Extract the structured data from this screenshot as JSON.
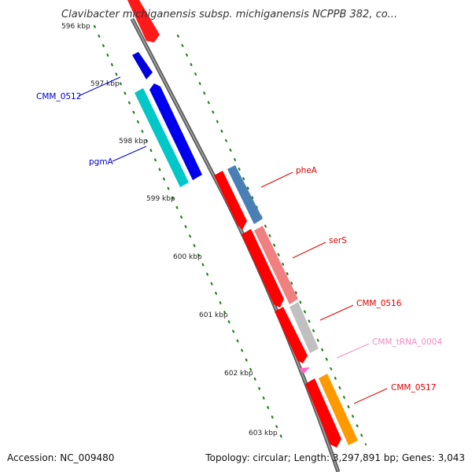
{
  "title": "Clavibacter michiganensis subsp. michiganensis NCPPB 382, co...",
  "footer": {
    "accession": "Accession: NC_009480",
    "summary": "Topology: circular; Length: 3,297,891 bp; Genes: 3,043"
  },
  "ticks": [
    {
      "label": "596 kbp"
    },
    {
      "label": "597 kbp"
    },
    {
      "label": "598 kbp"
    },
    {
      "label": "599 kbp"
    },
    {
      "label": "600 kbp"
    },
    {
      "label": "601 kbp"
    },
    {
      "label": "602 kbp"
    },
    {
      "label": "603 kbp"
    }
  ],
  "gene_labels": [
    {
      "name": "CMM_0512",
      "color": "#0000cc"
    },
    {
      "name": "pgmA",
      "color": "#0000cc"
    },
    {
      "name": "pheA",
      "color": "#dd0000"
    },
    {
      "name": "serS",
      "color": "#dd0000"
    },
    {
      "name": "CMM_0516",
      "color": "#dd0000"
    },
    {
      "name": "CMM_tRNA_0004",
      "color": "#f08cc0"
    },
    {
      "name": "CMM_0517",
      "color": "#dd0000"
    }
  ],
  "colors": {
    "backbone": "#808080",
    "tick_dots": "#2a7d22",
    "cds_red": "#ff0000",
    "cds_blue": "#0000ee",
    "cds_cyan": "#00cccc",
    "cds_steelblue": "#4a7fb5",
    "cds_salmon": "#f08080",
    "cds_gray": "#c0c0c0",
    "cds_orange": "#ff9900",
    "trna_pink": "#ff66cc"
  }
}
